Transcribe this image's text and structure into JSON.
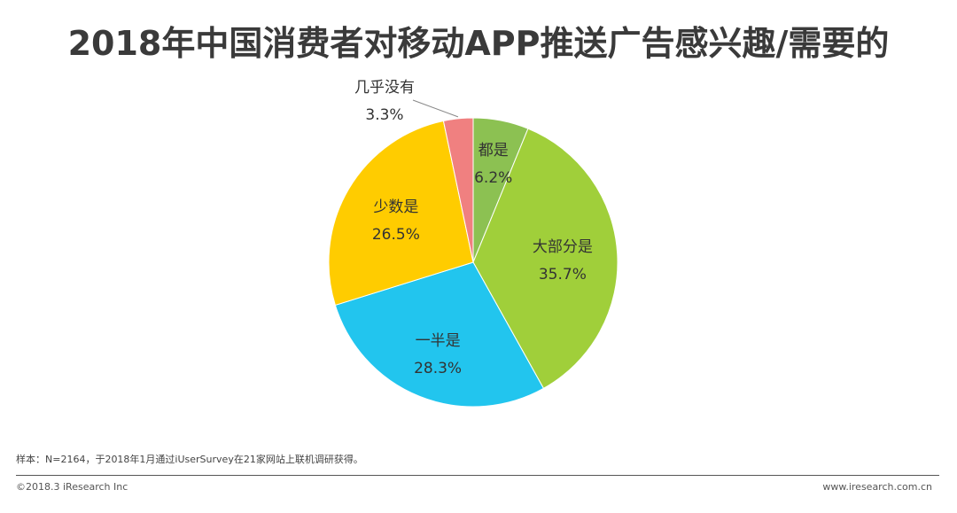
{
  "title": "2018年中国消费者对移动APP推送广告感兴趣/需要的",
  "footnote": "样本：N=2164，于2018年1月通过iUserSurvey在21家网站上联机调研获得。",
  "copyright": "©2018.3 iResearch Inc",
  "site": "www.iresearch.com.cn",
  "chart_data": {
    "type": "pie",
    "title": "2018年中国消费者对移动APP推送广告感兴趣/需要的",
    "categories": [
      "都是",
      "大部分是",
      "一半是",
      "少数是",
      "几乎没有"
    ],
    "values": [
      6.2,
      35.7,
      28.3,
      26.5,
      3.3
    ],
    "value_labels": [
      "6.2%",
      "35.7%",
      "28.3%",
      "26.5%",
      "3.3%"
    ],
    "colors": [
      "#8cc152",
      "#a0cf3a",
      "#22c5ee",
      "#ffcc00",
      "#f08080"
    ],
    "start": "12 o'clock",
    "direction": "clockwise",
    "legend": "none"
  }
}
